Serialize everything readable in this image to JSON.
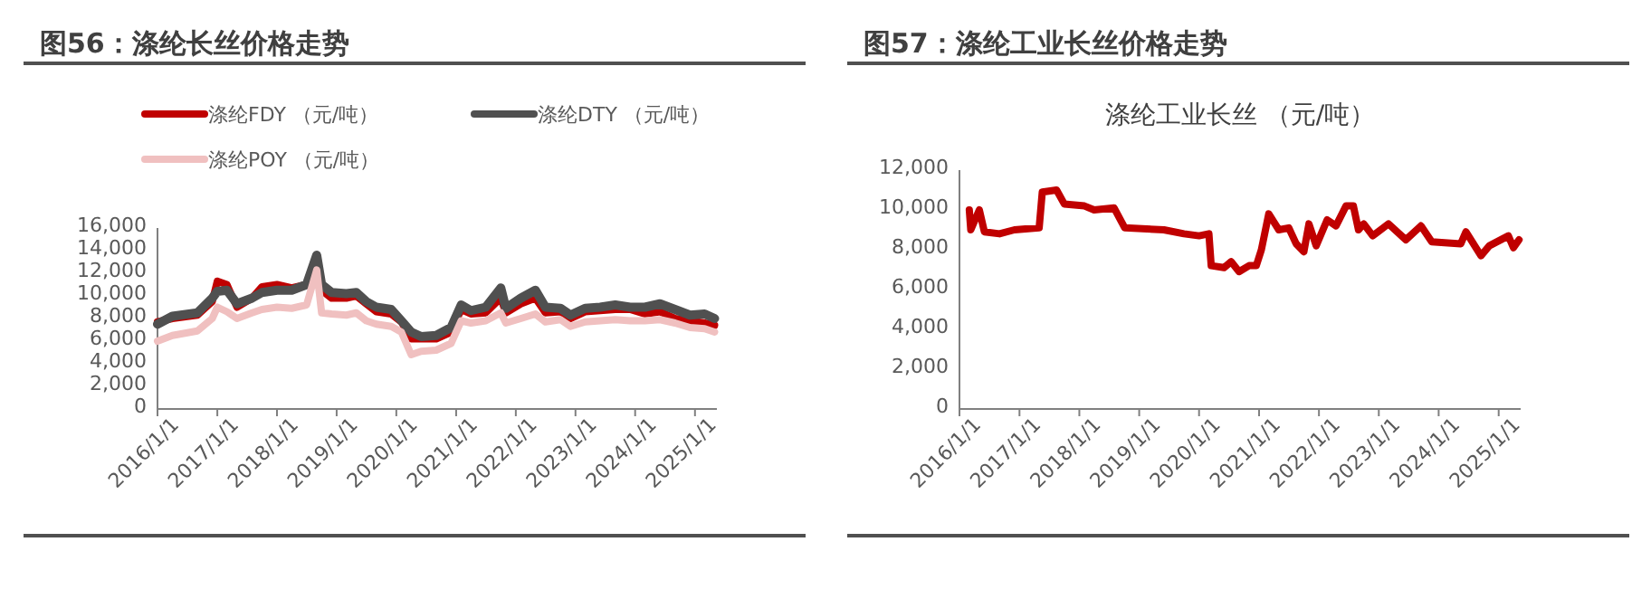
{
  "chart_data": [
    {
      "type": "line",
      "title": "图56：涤纶长丝价格走势",
      "legend": "top",
      "x": [
        "2016-01",
        "2016-04",
        "2016-09",
        "2016-12",
        "2017-01",
        "2017-03",
        "2017-05",
        "2017-08",
        "2017-10",
        "2018-01",
        "2018-04",
        "2018-07",
        "2018-09",
        "2018-10",
        "2018-12",
        "2019-03",
        "2019-05",
        "2019-07",
        "2019-09",
        "2019-12",
        "2020-02",
        "2020-04",
        "2020-06",
        "2020-09",
        "2020-12",
        "2021-02",
        "2021-04",
        "2021-07",
        "2021-10",
        "2021-11",
        "2022-02",
        "2022-05",
        "2022-07",
        "2022-10",
        "2022-12",
        "2023-03",
        "2023-06",
        "2023-09",
        "2023-12",
        "2024-03",
        "2024-06",
        "2024-09",
        "2024-12",
        "2025-03",
        "2025-05"
      ],
      "ylim": [
        0,
        16000
      ],
      "yticks": [
        {
          "value": 0,
          "label": "0"
        },
        {
          "value": 2000,
          "label": "2,000"
        },
        {
          "value": 4000,
          "label": "4,000"
        },
        {
          "value": 6000,
          "label": "6,000"
        },
        {
          "value": 8000,
          "label": "8,000"
        },
        {
          "value": 10000,
          "label": "10,000"
        },
        {
          "value": 12000,
          "label": "12,000"
        },
        {
          "value": 14000,
          "label": "14,000"
        },
        {
          "value": 16000,
          "label": "16,000"
        }
      ],
      "xlim": [
        "2016-01-01",
        "2025-05-15"
      ],
      "xticks": [
        {
          "value": "2016-01-01",
          "label": "2016/1/1"
        },
        {
          "value": "2017-01-01",
          "label": "2017/1/1"
        },
        {
          "value": "2018-01-01",
          "label": "2018/1/1"
        },
        {
          "value": "2019-01-01",
          "label": "2019/1/1"
        },
        {
          "value": "2020-01-01",
          "label": "2020/1/1"
        },
        {
          "value": "2021-01-01",
          "label": "2021/1/1"
        },
        {
          "value": "2022-01-01",
          "label": "2022/1/1"
        },
        {
          "value": "2023-01-01",
          "label": "2023/1/1"
        },
        {
          "value": "2024-01-01",
          "label": "2024/1/1"
        },
        {
          "value": "2025-01-01",
          "label": "2025/1/1"
        }
      ],
      "series": [
        {
          "name": "涤纶FDY （元/吨）",
          "color": "#c00000",
          "values": [
            7700,
            8000,
            8300,
            9500,
            11300,
            11000,
            9000,
            9800,
            10800,
            11000,
            10700,
            11000,
            13000,
            10500,
            9800,
            9800,
            10000,
            9300,
            8600,
            8400,
            7700,
            6200,
            6200,
            6200,
            6800,
            8800,
            8400,
            8500,
            9800,
            8500,
            9300,
            9800,
            8500,
            8600,
            8000,
            8600,
            8700,
            8800,
            8800,
            8400,
            8600,
            8000,
            7800,
            7600,
            7400
          ]
        },
        {
          "name": "涤纶DTY （元/吨）",
          "color": "#505050",
          "values": [
            7500,
            8200,
            8500,
            9800,
            10400,
            10500,
            9300,
            9800,
            10300,
            10500,
            10500,
            11000,
            13600,
            11000,
            10300,
            10200,
            10300,
            9500,
            9000,
            8800,
            7800,
            6800,
            6400,
            6500,
            7200,
            9200,
            8700,
            9000,
            10700,
            8900,
            9800,
            10500,
            9000,
            8900,
            8300,
            8900,
            9000,
            9200,
            9000,
            9000,
            9300,
            8800,
            8300,
            8400,
            8000
          ]
        },
        {
          "name": "涤纶POY （元/吨）",
          "color": "#f0c0c0",
          "values": [
            6000,
            6500,
            6900,
            8000,
            9000,
            8600,
            8000,
            8500,
            8800,
            9000,
            8900,
            9200,
            12300,
            8500,
            8400,
            8300,
            8500,
            7800,
            7500,
            7300,
            6800,
            4800,
            5100,
            5200,
            5800,
            7800,
            7600,
            7800,
            8500,
            7600,
            8000,
            8400,
            7700,
            7900,
            7300,
            7700,
            7800,
            7900,
            7800,
            7800,
            7900,
            7600,
            7200,
            7100,
            6800
          ]
        }
      ]
    },
    {
      "type": "line",
      "title": "图57：涤纶工业长丝价格走势",
      "subtitle": "涤纶工业长丝 （元/吨）",
      "legend": false,
      "x": [
        "2016-03-01",
        "2016-03-10",
        "2016-05-01",
        "2016-06-01",
        "2016-09-01",
        "2016-12-01",
        "2017-05-01",
        "2017-05-20",
        "2017-08-15",
        "2017-10-01",
        "2018-02-01",
        "2018-04-01",
        "2018-08-01",
        "2018-10-05",
        "2019-06-01",
        "2019-10-01",
        "2020-01-01",
        "2020-03-01",
        "2020-03-15",
        "2020-06-01",
        "2020-07-15",
        "2020-09-01",
        "2020-11-01",
        "2020-12-15",
        "2021-01-15",
        "2021-03-01",
        "2021-05-01",
        "2021-07-01",
        "2021-08-15",
        "2021-10-01",
        "2021-11-01",
        "2021-12-15",
        "2022-02-20",
        "2022-04-15",
        "2022-06-15",
        "2022-07-30",
        "2022-08-30",
        "2022-10-01",
        "2022-11-25",
        "2023-03-01",
        "2023-06-15",
        "2023-09-15",
        "2023-11-20",
        "2024-05-15",
        "2024-06-15",
        "2024-09-15",
        "2024-11-05",
        "2025-03-01",
        "2025-04-01",
        "2025-05-05"
      ],
      "values": [
        10000,
        9000,
        10000,
        8900,
        8800,
        9000,
        9100,
        10900,
        11000,
        10300,
        10200,
        10000,
        10100,
        9100,
        9000,
        8800,
        8700,
        8800,
        7200,
        7100,
        7400,
        6900,
        7200,
        7200,
        8000,
        9800,
        9000,
        9100,
        8300,
        7900,
        9300,
        8200,
        9500,
        9200,
        10200,
        10200,
        9000,
        9300,
        8700,
        9300,
        8500,
        9200,
        8400,
        8300,
        8900,
        7700,
        8200,
        8700,
        8100,
        8500
      ],
      "color": "#c00000",
      "ylim": [
        0,
        12000
      ],
      "yticks": [
        {
          "value": 0,
          "label": "0"
        },
        {
          "value": 2000,
          "label": "2,000"
        },
        {
          "value": 4000,
          "label": "4,000"
        },
        {
          "value": 6000,
          "label": "6,000"
        },
        {
          "value": 8000,
          "label": "8,000"
        },
        {
          "value": 10000,
          "label": "10,000"
        },
        {
          "value": 12000,
          "label": "12,000"
        }
      ],
      "xlim": [
        "2016-01-01",
        "2025-05-15"
      ],
      "xticks": [
        {
          "value": "2016-01-01",
          "label": "2016/1/1"
        },
        {
          "value": "2017-01-01",
          "label": "2017/1/1"
        },
        {
          "value": "2018-01-01",
          "label": "2018/1/1"
        },
        {
          "value": "2019-01-01",
          "label": "2019/1/1"
        },
        {
          "value": "2020-01-01",
          "label": "2020/1/1"
        },
        {
          "value": "2021-01-01",
          "label": "2021/1/1"
        },
        {
          "value": "2022-01-01",
          "label": "2022/1/1"
        },
        {
          "value": "2023-01-01",
          "label": "2023/1/1"
        },
        {
          "value": "2024-01-01",
          "label": "2024/1/1"
        },
        {
          "value": "2025-01-01",
          "label": "2025/1/1"
        }
      ]
    }
  ]
}
